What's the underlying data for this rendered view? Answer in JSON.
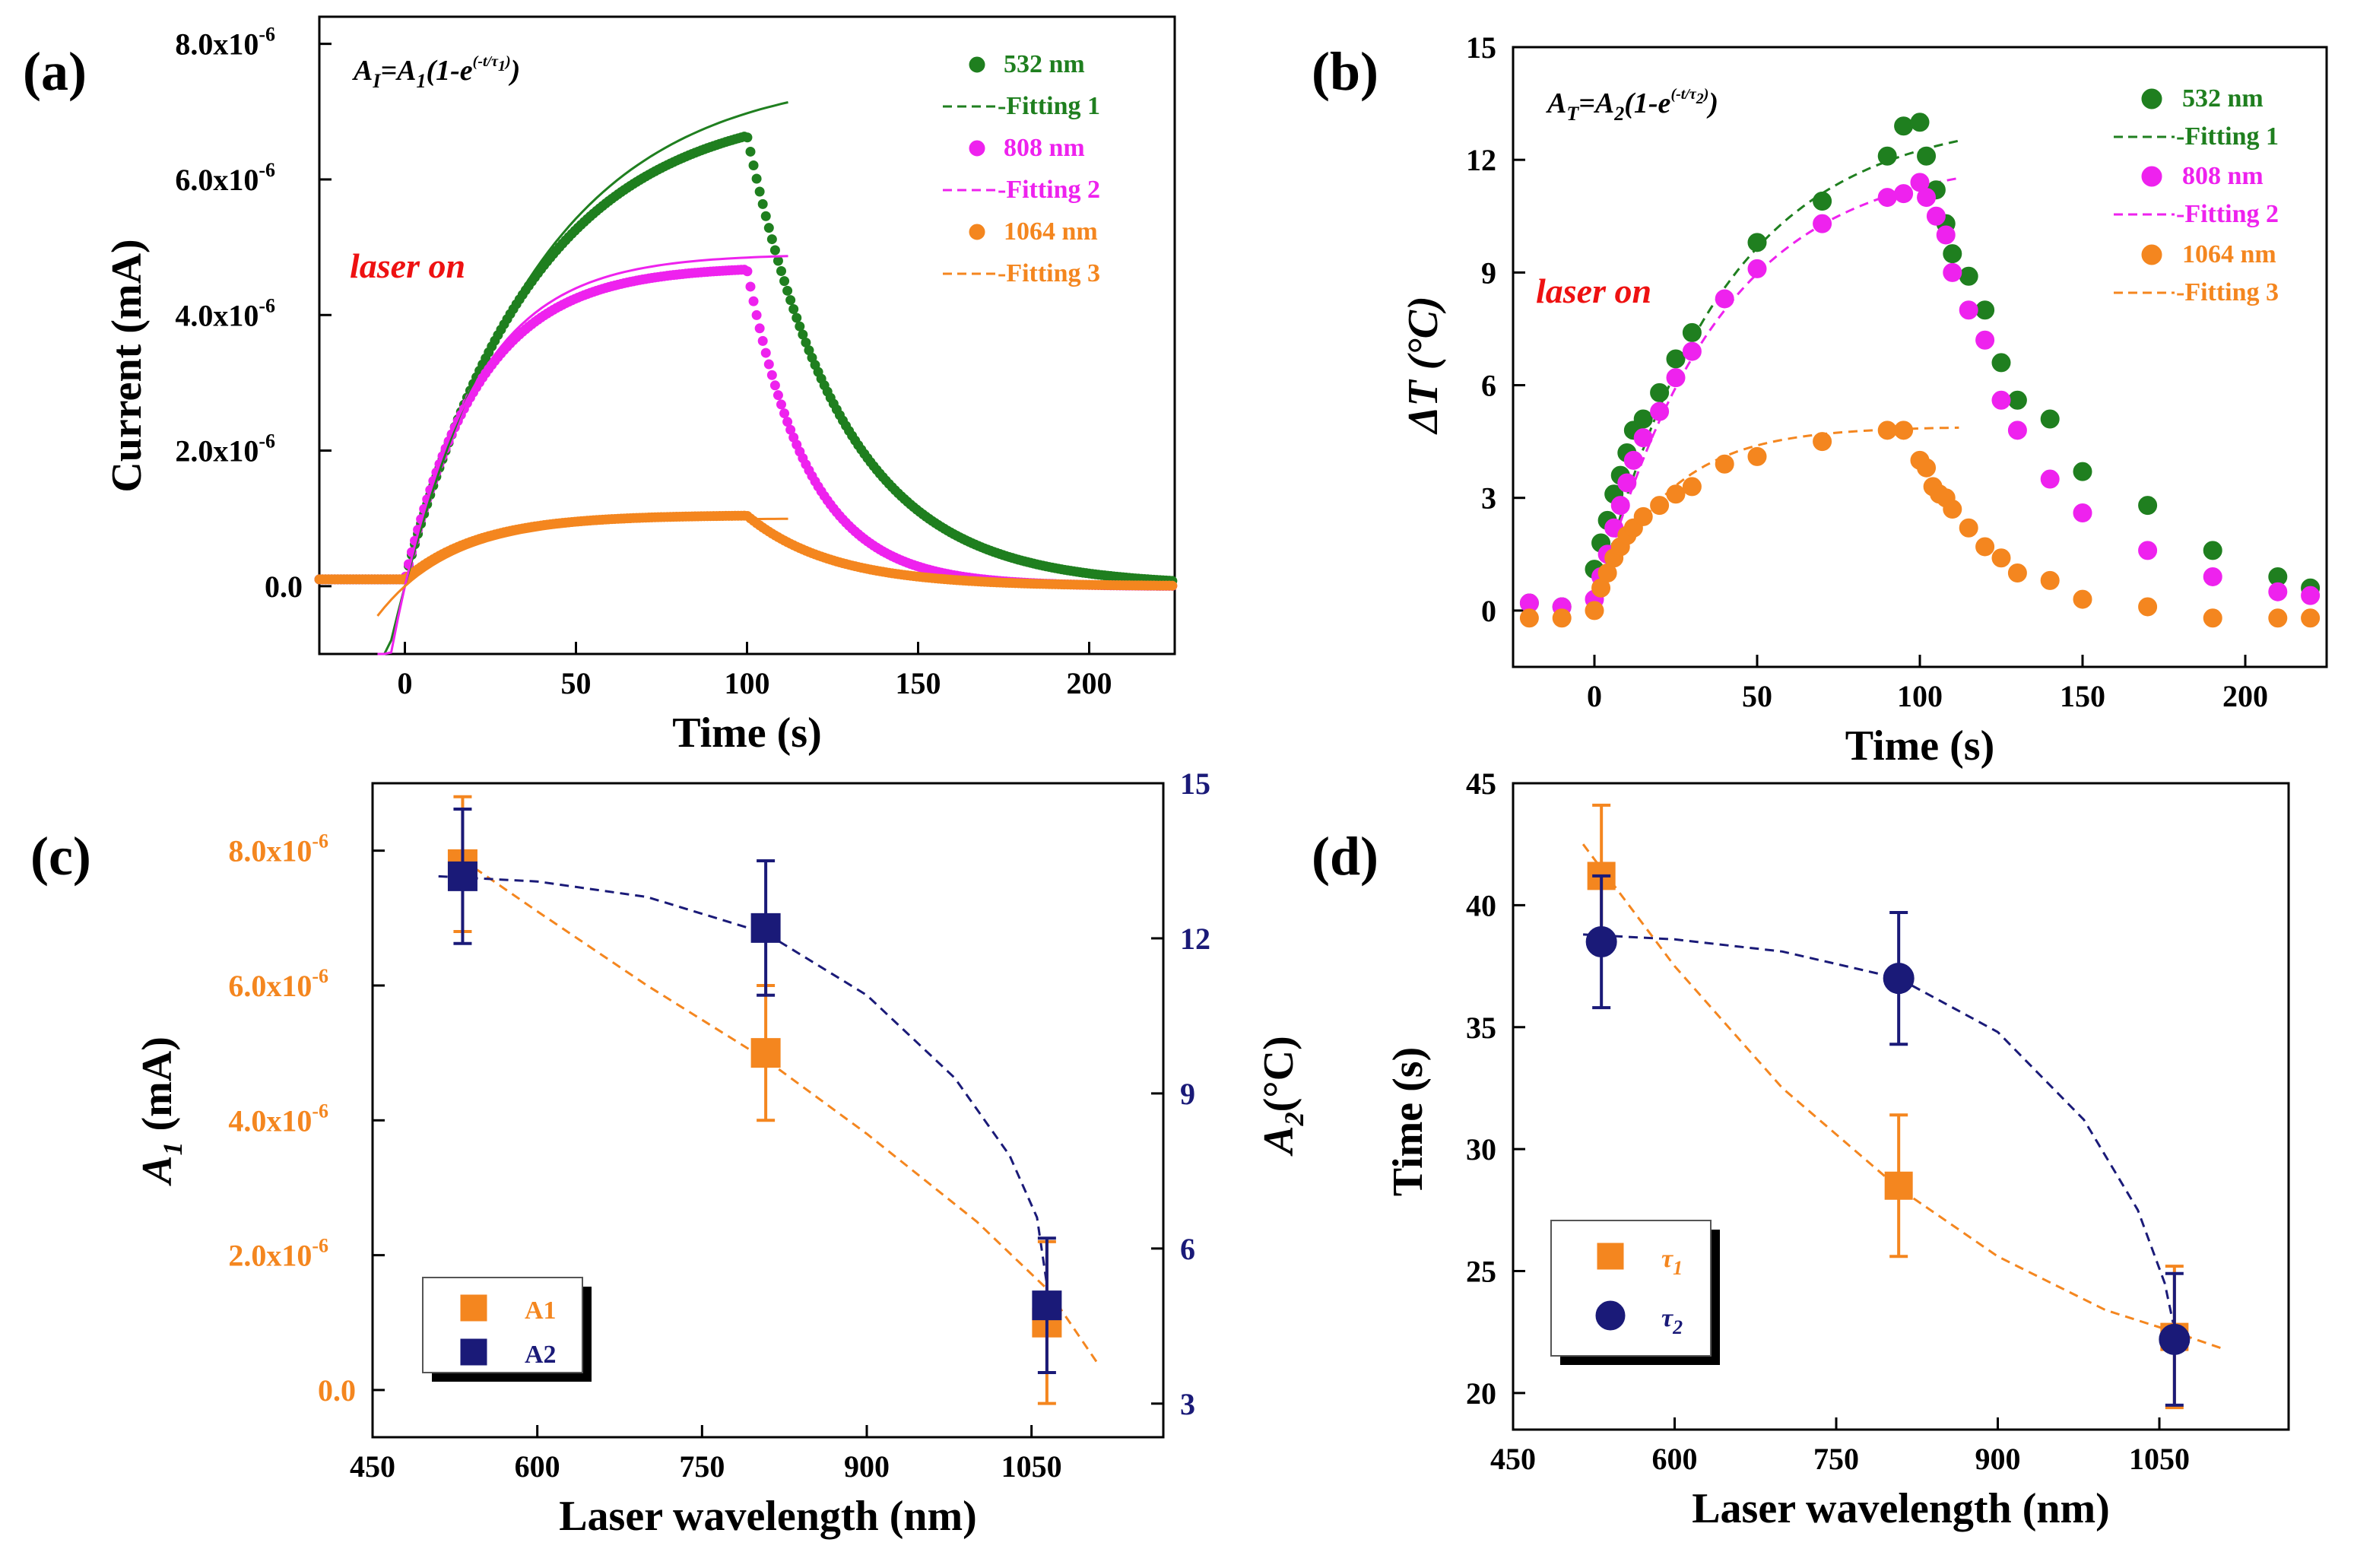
{
  "colors": {
    "c532": "#1f7f1f",
    "c808": "#ee22ee",
    "c1064": "#f4861f",
    "a1": "#f4861f",
    "a2": "#1a1a78",
    "laser_on": "#ee1111",
    "axis": "#000000"
  },
  "panels": {
    "a": {
      "label": "(a)",
      "annotation": "laser on",
      "equation": {
        "lhs": "A",
        "lhs_sub": "I",
        "rhs": "=A",
        "rhs_sub": "1",
        "body": "(1-e",
        "exp": "(-t/τ",
        "exp_sub": "1",
        "exp_close": ")",
        "close": ")"
      }
    },
    "b": {
      "label": "(b)",
      "annotation": "laser on",
      "equation": {
        "lhs": "A",
        "lhs_sub": "T",
        "rhs": "=A",
        "rhs_sub": "2",
        "body": "(1-e",
        "exp": "(-t/τ",
        "exp_sub": "2",
        "exp_close": ")",
        "close": ")"
      }
    },
    "c": {
      "label": "(c)"
    },
    "d": {
      "label": "(d)"
    }
  },
  "chart_data": [
    {
      "id": "a",
      "type": "scatter",
      "title": "",
      "xlabel": "Time (s)",
      "ylabel": "Current (mA)",
      "xlim": [
        -25,
        225
      ],
      "ylim": [
        -1e-06,
        8.4e-06
      ],
      "xticks": [
        0,
        50,
        100,
        150,
        200
      ],
      "xtick_labels": [
        "0",
        "50",
        "100",
        "150",
        "200"
      ],
      "yticks": [
        0,
        2e-06,
        4e-06,
        6e-06,
        8e-06
      ],
      "ytick_labels": [
        "0.0",
        "2.0x10",
        "4.0x10",
        "6.0x10",
        "8.0x10"
      ],
      "ytick_exponent": "-6",
      "legend": [
        "532 nm",
        "Fitting 1",
        "808 nm",
        "Fitting 2",
        "1064 nm",
        "Fitting 3"
      ],
      "series": [
        {
          "name": "532 nm",
          "color_key": "c532",
          "model": {
            "on_t": 0,
            "off_t": 100,
            "amp": 7.05e-06,
            "tau_on": 38,
            "tau_off": 28,
            "t_end": 225,
            "baseline": 1e-07
          }
        },
        {
          "name": "808 nm",
          "color_key": "c808",
          "model": {
            "on_t": 0,
            "off_t": 100,
            "amp": 4.62e-06,
            "tau_on": 22,
            "tau_off": 18,
            "t_end": 225,
            "baseline": 1e-07
          }
        },
        {
          "name": "1064 nm",
          "color_key": "c1064",
          "model": {
            "on_t": 0,
            "off_t": 100,
            "amp": 9.5e-07,
            "tau_on": 22,
            "tau_off": 25,
            "t_end": 225,
            "baseline": 1e-07
          }
        }
      ],
      "fits": [
        {
          "name": "Fitting 1",
          "color_key": "c532",
          "amp": 7.6e-06,
          "tau": 40,
          "t_max": 112
        },
        {
          "name": "Fitting 2",
          "color_key": "c808",
          "amp": 4.9e-06,
          "tau": 22,
          "t_max": 112
        },
        {
          "name": "Fitting 3",
          "color_key": "c1064",
          "amp": 1e-06,
          "tau": 22,
          "t_max": 112
        }
      ]
    },
    {
      "id": "b",
      "type": "scatter",
      "title": "",
      "xlabel": "Time (s)",
      "ylabel": "ΔT (°C)",
      "xlim": [
        -25,
        225
      ],
      "ylim": [
        -1.5,
        15
      ],
      "xticks": [
        0,
        50,
        100,
        150,
        200
      ],
      "xtick_labels": [
        "0",
        "50",
        "100",
        "150",
        "200"
      ],
      "yticks": [
        0,
        3,
        6,
        9,
        12,
        15
      ],
      "ytick_labels": [
        "0",
        "3",
        "6",
        "9",
        "12",
        "15"
      ],
      "legend": [
        "532 nm",
        "Fitting 1",
        "808 nm",
        "Fitting 2",
        "1064 nm",
        "Fitting 3"
      ],
      "series": [
        {
          "name": "532 nm",
          "color_key": "c532",
          "x": [
            -20,
            -10,
            0,
            2,
            4,
            6,
            8,
            10,
            12,
            15,
            20,
            25,
            30,
            50,
            70,
            90,
            95,
            100,
            102,
            105,
            108,
            110,
            115,
            120,
            125,
            130,
            140,
            150,
            170,
            190,
            210,
            220
          ],
          "y": [
            0.2,
            0.1,
            1.1,
            1.8,
            2.4,
            3.1,
            3.6,
            4.2,
            4.8,
            5.1,
            5.8,
            6.7,
            7.4,
            9.8,
            10.9,
            12.1,
            12.9,
            13.0,
            12.1,
            11.2,
            10.3,
            9.5,
            8.9,
            8.0,
            6.6,
            5.6,
            5.1,
            3.7,
            2.8,
            1.6,
            0.9,
            0.6
          ]
        },
        {
          "name": "808 nm",
          "color_key": "c808",
          "x": [
            -20,
            -10,
            0,
            2,
            4,
            6,
            8,
            10,
            12,
            15,
            20,
            25,
            30,
            40,
            50,
            70,
            90,
            95,
            100,
            102,
            105,
            108,
            110,
            115,
            120,
            125,
            130,
            140,
            150,
            170,
            190,
            210,
            220
          ],
          "y": [
            0.2,
            0.1,
            0.3,
            0.9,
            1.5,
            2.2,
            2.8,
            3.4,
            4.0,
            4.6,
            5.3,
            6.2,
            6.9,
            8.3,
            9.1,
            10.3,
            11.0,
            11.1,
            11.4,
            11.0,
            10.5,
            10.0,
            9.0,
            8.0,
            7.2,
            5.6,
            4.8,
            3.5,
            2.6,
            1.6,
            0.9,
            0.5,
            0.4
          ]
        },
        {
          "name": "1064 nm",
          "color_key": "c1064",
          "x": [
            -20,
            -10,
            0,
            2,
            4,
            6,
            8,
            10,
            12,
            15,
            20,
            25,
            30,
            40,
            50,
            70,
            90,
            95,
            100,
            102,
            104,
            106,
            108,
            110,
            115,
            120,
            125,
            130,
            140,
            150,
            170,
            190,
            210,
            220
          ],
          "y": [
            -0.2,
            -0.2,
            0.0,
            0.6,
            1.0,
            1.4,
            1.7,
            2.0,
            2.2,
            2.5,
            2.8,
            3.1,
            3.3,
            3.9,
            4.1,
            4.5,
            4.8,
            4.8,
            4.0,
            3.8,
            3.3,
            3.1,
            3.0,
            2.7,
            2.2,
            1.7,
            1.4,
            1.0,
            0.8,
            0.3,
            0.1,
            -0.2,
            -0.2,
            -0.2
          ]
        }
      ],
      "fits": [
        {
          "name": "Fitting 1",
          "color_key": "c532",
          "amp": 13.2,
          "tau": 38,
          "t_max": 112
        },
        {
          "name": "Fitting 2",
          "color_key": "c808",
          "amp": 12.1,
          "tau": 37,
          "t_max": 112
        },
        {
          "name": "Fitting 3",
          "color_key": "c1064",
          "amp": 4.9,
          "tau": 22,
          "t_max": 112
        }
      ]
    },
    {
      "id": "c",
      "type": "scatter",
      "title": "",
      "xlabel": "Laser wavelength (nm)",
      "ylabel": "A",
      "ylabel_sub": "1",
      "ylabel_unit": " (mA)",
      "y2label": "A",
      "y2label_sub": "2",
      "y2label_unit": "(°C)",
      "xlim": [
        450,
        1170
      ],
      "ylim": [
        -7e-07,
        9e-06
      ],
      "y2lim": [
        2.35,
        15.0
      ],
      "xticks": [
        450,
        600,
        750,
        900,
        1050
      ],
      "xtick_labels": [
        "450",
        "600",
        "750",
        "900",
        "1050"
      ],
      "yticks": [
        0,
        2e-06,
        4e-06,
        6e-06,
        8e-06
      ],
      "ytick_labels": [
        "0.0",
        "2.0x10",
        "4.0x10",
        "6.0x10",
        "8.0x10"
      ],
      "ytick_exponent": "-6",
      "y2ticks": [
        3,
        6,
        9,
        12,
        15
      ],
      "y2tick_labels": [
        "3",
        "6",
        "9",
        "12",
        "15"
      ],
      "legend": [
        "A1",
        "A2"
      ],
      "series": [
        {
          "name": "A1",
          "color_key": "a1",
          "axis": "left",
          "x": [
            532,
            808,
            1064
          ],
          "y": [
            7.8e-06,
            5e-06,
            1e-06
          ],
          "err": [
            1e-06,
            1e-06,
            1.2e-06
          ]
        },
        {
          "name": "A2",
          "color_key": "a2",
          "axis": "right",
          "x": [
            532,
            808,
            1064
          ],
          "y": [
            13.2,
            12.2,
            4.9
          ],
          "err": [
            1.3,
            1.3,
            1.3
          ]
        }
      ],
      "fits": [
        {
          "name": "A1 fit",
          "color_key": "a1",
          "axis": "left",
          "x": [
            520,
            600,
            700,
            808,
            900,
            1000,
            1064,
            1110
          ],
          "y": [
            8e-06,
            7.1e-06,
            6e-06,
            4.9e-06,
            3.8e-06,
            2.5e-06,
            1.5e-06,
            4e-07
          ]
        },
        {
          "name": "A2 fit",
          "color_key": "a2",
          "axis": "right",
          "x": [
            510,
            600,
            700,
            808,
            900,
            980,
            1030,
            1055,
            1064
          ],
          "y": [
            13.2,
            13.1,
            12.8,
            12.1,
            10.9,
            9.3,
            7.8,
            6.6,
            5.3
          ]
        }
      ]
    },
    {
      "id": "d",
      "type": "scatter",
      "title": "",
      "xlabel": "Laser wavelength (nm)",
      "ylabel": "Time (s)",
      "xlim": [
        450,
        1170
      ],
      "ylim": [
        18.5,
        45
      ],
      "xticks": [
        450,
        600,
        750,
        900,
        1050
      ],
      "xtick_labels": [
        "450",
        "600",
        "750",
        "900",
        "1050"
      ],
      "yticks": [
        20,
        25,
        30,
        35,
        40,
        45
      ],
      "ytick_labels": [
        "20",
        "25",
        "30",
        "35",
        "40",
        "45"
      ],
      "legend": [
        "τ",
        "τ"
      ],
      "legend_subs": [
        "1",
        "2"
      ],
      "series": [
        {
          "name": "τ1",
          "color_key": "a1",
          "marker": "square",
          "x": [
            532,
            808,
            1064
          ],
          "y": [
            41.2,
            28.5,
            22.3
          ],
          "err": [
            2.9,
            2.9,
            2.9
          ]
        },
        {
          "name": "τ2",
          "color_key": "a2",
          "marker": "circle",
          "x": [
            532,
            808,
            1064
          ],
          "y": [
            38.5,
            37.0,
            22.2
          ],
          "err": [
            2.7,
            2.7,
            2.7
          ]
        }
      ],
      "fits": [
        {
          "name": "τ1 fit",
          "color_key": "a1",
          "x": [
            515,
            600,
            700,
            808,
            900,
            1000,
            1064,
            1110
          ],
          "y": [
            42.5,
            37.5,
            32.5,
            28.4,
            25.6,
            23.4,
            22.5,
            21.8
          ]
        },
        {
          "name": "τ2 fit",
          "color_key": "a2",
          "x": [
            515,
            600,
            700,
            808,
            900,
            980,
            1030,
            1055,
            1066
          ],
          "y": [
            38.8,
            38.6,
            38.1,
            37.0,
            34.8,
            31.2,
            27.5,
            24.5,
            22.2
          ]
        }
      ]
    }
  ]
}
